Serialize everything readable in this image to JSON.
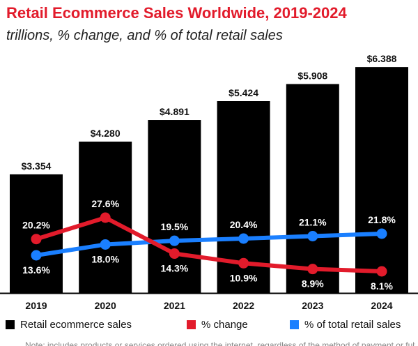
{
  "title": "Retail Ecommerce Sales Worldwide, 2019-2024",
  "subtitle": "trillions, % change, and % of total retail sales",
  "colors": {
    "bars": "#000000",
    "change": "#e21b2b",
    "share": "#1a7fff",
    "title": "#e21b2b"
  },
  "chart_data": {
    "type": "bar",
    "categories": [
      "2019",
      "2020",
      "2021",
      "2022",
      "2023",
      "2024"
    ],
    "series": [
      {
        "name": "Retail ecommerce sales",
        "type": "bar",
        "values": [
          3.354,
          4.28,
          4.891,
          5.424,
          5.908,
          6.388
        ],
        "labels": [
          "$3.354",
          "$4.280",
          "$4.891",
          "$5.424",
          "$5.908",
          "$6.388"
        ]
      },
      {
        "name": "% change",
        "type": "line",
        "values": [
          20.2,
          27.6,
          14.3,
          10.9,
          8.9,
          8.1
        ],
        "labels": [
          "20.2%",
          "27.6%",
          "14.3%",
          "10.9%",
          "8.9%",
          "8.1%"
        ]
      },
      {
        "name": "% of total retail sales",
        "type": "line",
        "values": [
          13.6,
          18.0,
          19.5,
          20.4,
          21.1,
          21.8
        ],
        "labels": [
          "13.6%",
          "18.0%",
          "19.5%",
          "20.4%",
          "21.1%",
          "21.8%"
        ]
      }
    ],
    "legend": [
      "Retail ecommerce sales",
      "% change",
      "% of total retail sales"
    ],
    "legend_position": "bottom",
    "grid": false
  },
  "footnote": "Note: includes products or services ordered using the internet, regardless of the method of payment or fulfillment"
}
